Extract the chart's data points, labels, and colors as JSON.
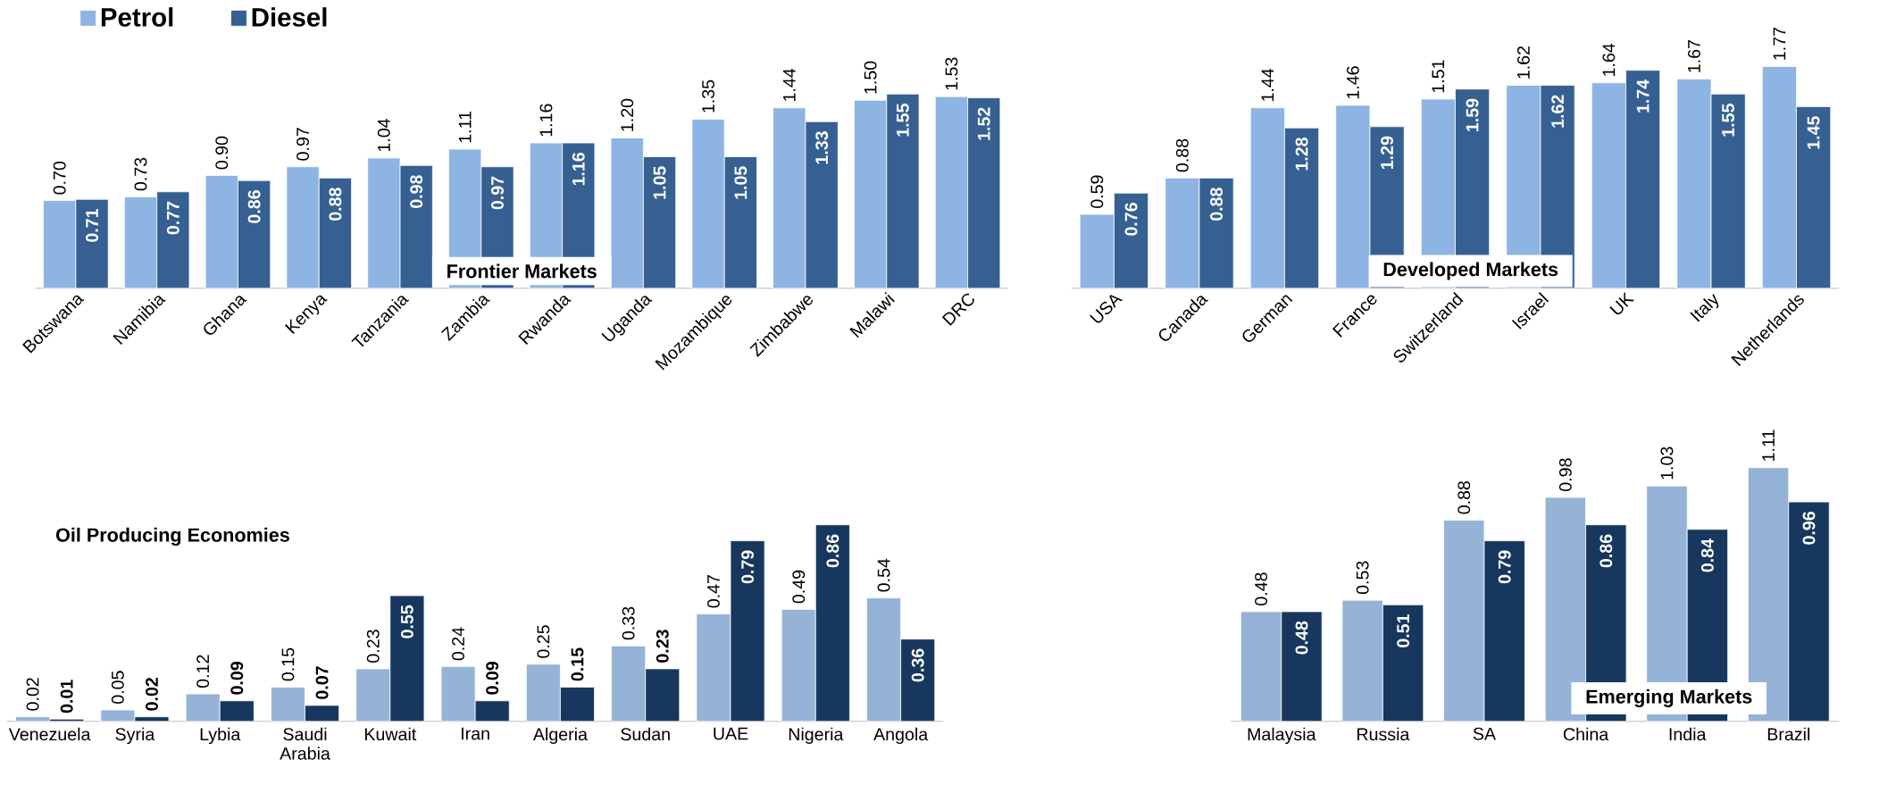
{
  "chart_data": [
    {
      "type": "bar",
      "categories": [
        "Botswana",
        "Namibia",
        "Ghana",
        "Kenya",
        "Tanzania",
        "Zambia",
        "Rwanda",
        "Uganda",
        "Mozambique",
        "Zimbabwe",
        "Malawi",
        "DRC"
      ],
      "legend": "top left",
      "annotations": [
        "Frontier Markets"
      ],
      "series": [
        {
          "name": "Petrol",
          "color": "#8db4e2",
          "values": [
            0.7,
            0.73,
            0.9,
            0.97,
            1.04,
            1.11,
            1.16,
            1.2,
            1.35,
            1.44,
            1.5,
            1.53
          ],
          "value_labels": [
            "0.70",
            "0.73",
            "0.90",
            "0.97",
            "1.04",
            "1.11",
            "1.16",
            "1.20",
            "1.35",
            "1.44",
            "1.50",
            "1.53"
          ]
        },
        {
          "name": "Diesel",
          "color": "#366092",
          "values": [
            0.71,
            0.77,
            0.86,
            0.88,
            0.98,
            0.97,
            1.16,
            1.05,
            1.05,
            1.33,
            1.55,
            1.52
          ],
          "value_labels": [
            "0.71",
            "0.77",
            "0.86",
            "0.88",
            "0.98",
            "0.97",
            "1.16",
            "1.05",
            "1.05",
            "1.33",
            "1.55",
            "1.52"
          ]
        }
      ]
    },
    {
      "type": "bar",
      "categories": [
        "USA",
        "Canada",
        "German",
        "France",
        "Switzerland",
        "Israel",
        "UK",
        "Italy",
        "Netherlands"
      ],
      "annotations": [
        "Developed Markets"
      ],
      "series": [
        {
          "color": "#8db4e2",
          "values": [
            0.59,
            0.88,
            1.44,
            1.46,
            1.51,
            1.62,
            1.64,
            1.67,
            1.77
          ],
          "value_labels": [
            "0.59",
            "0.88",
            "1.44",
            "1.46",
            "1.51",
            "1.62",
            "1.64",
            "1.67",
            "1.77"
          ]
        },
        {
          "color": "#366092",
          "values": [
            0.76,
            0.88,
            1.28,
            1.29,
            1.59,
            1.62,
            1.74,
            1.55,
            1.45
          ],
          "value_labels": [
            "0.76",
            "0.88",
            "1.28",
            "1.29",
            "1.59",
            "1.62",
            "1.74",
            "1.55",
            "1.45"
          ]
        }
      ]
    },
    {
      "type": "bar",
      "categories": [
        "Venezuela",
        "Syria",
        "Lybia",
        "Saudi Arabia",
        "Kuwait",
        "Iran",
        "Algeria",
        "Sudan",
        "UAE",
        "Nigeria",
        "Angola"
      ],
      "annotations": [
        "Oil Producing Economies"
      ],
      "series": [
        {
          "color": "#95b3d7",
          "values": [
            0.02,
            0.05,
            0.12,
            0.15,
            0.23,
            0.24,
            0.25,
            0.33,
            0.47,
            0.49,
            0.54
          ],
          "value_labels": [
            "0.02",
            "0.05",
            "0.12",
            "0.15",
            "0.23",
            "0.24",
            "0.25",
            "0.33",
            "0.47",
            "0.49",
            "0.54"
          ]
        },
        {
          "color": "#17375e",
          "values": [
            0.01,
            0.02,
            0.09,
            0.07,
            0.55,
            0.09,
            0.15,
            0.23,
            0.79,
            0.86,
            0.36
          ],
          "value_labels": [
            "0.01",
            "0.02",
            "0.09",
            "0.07",
            "0.55",
            "0.09",
            "0.15",
            "0.23",
            "0.79",
            "0.86",
            "0.36"
          ]
        }
      ]
    },
    {
      "type": "bar",
      "categories": [
        "Malaysia",
        "Russia",
        "SA",
        "China",
        "India",
        "Brazil"
      ],
      "annotations": [
        "Emerging Markets"
      ],
      "series": [
        {
          "color": "#95b3d7",
          "values": [
            0.48,
            0.53,
            0.88,
            0.98,
            1.03,
            1.11
          ],
          "value_labels": [
            "0.48",
            "0.53",
            "0.88",
            "0.98",
            "1.03",
            "1.11"
          ]
        },
        {
          "color": "#17375e",
          "values": [
            0.48,
            0.51,
            0.79,
            0.86,
            0.84,
            0.96
          ],
          "value_labels": [
            "0.48",
            "0.51",
            "0.79",
            "0.86",
            "0.84",
            "0.96"
          ]
        }
      ]
    }
  ]
}
